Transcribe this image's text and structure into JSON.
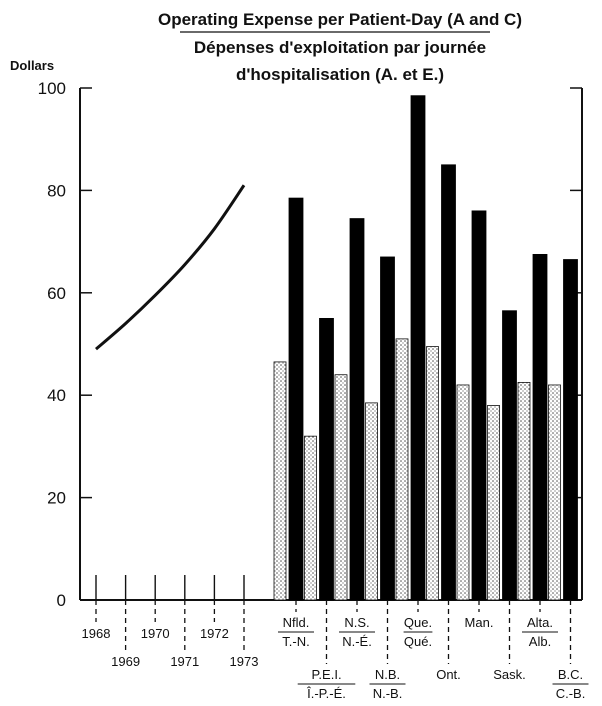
{
  "chart_data": {
    "type": "bar",
    "title_line1": "Operating Expense per Patient-Day (A and C)",
    "title_line2": "Dépenses d'exploitation par journée",
    "title_line3": "d'hospitalisation (A. et E.)",
    "ylabel": "Dollars",
    "ylim": [
      0,
      100
    ],
    "yticks": [
      "0",
      "20",
      "40",
      "60",
      "80",
      "100"
    ],
    "grid": false,
    "trend": {
      "type": "line",
      "x": [
        "1968",
        "1969",
        "1970",
        "1971",
        "1972",
        "1973"
      ],
      "values": [
        49,
        54,
        59.5,
        65.5,
        72.5,
        81
      ],
      "color": "#111111"
    },
    "categories": [
      {
        "top": "Nfld.",
        "bottom": "T.-N."
      },
      {
        "top": "P.E.I.",
        "bottom": "Î.-P.-É."
      },
      {
        "top": "N.S.",
        "bottom": "N.-É."
      },
      {
        "top": "N.B.",
        "bottom": "N.-B."
      },
      {
        "top": "Que.",
        "bottom": "Qué."
      },
      {
        "top": "Ont.",
        "bottom": ""
      },
      {
        "top": "Man.",
        "bottom": ""
      },
      {
        "top": "Sask.",
        "bottom": ""
      },
      {
        "top": "Alta.",
        "bottom": "Alb."
      },
      {
        "top": "B.C.",
        "bottom": "C.-B."
      }
    ],
    "series": [
      {
        "style": "stippled",
        "color": "#ffffff",
        "values": [
          46.5,
          32,
          44,
          38.5,
          51,
          49.5,
          42,
          38,
          42.5,
          42
        ]
      },
      {
        "style": "solid",
        "color": "#000000",
        "values": [
          78.5,
          55,
          74.5,
          67,
          98.5,
          85,
          76,
          56.5,
          67.5,
          66.5
        ]
      }
    ]
  }
}
